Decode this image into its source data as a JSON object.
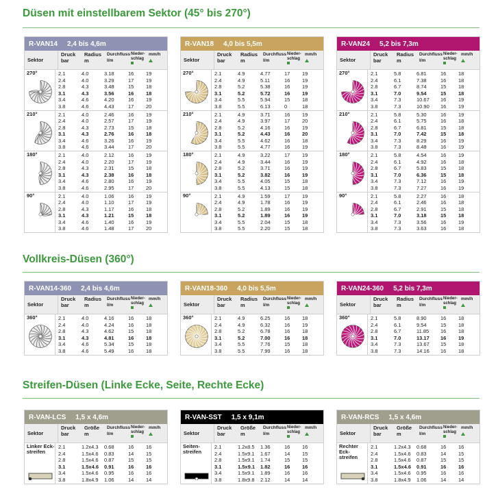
{
  "sections": {
    "s1": "Düsen mit einstellbarem Sektor (45° bis 270°)",
    "s2": "Vollkreis-Düsen (360°)",
    "s3": "Streifen-Düsen (Linke Ecke, Seite, Rechte Ecke)"
  },
  "headers": {
    "sektor": "Sektor",
    "druck": "Druck",
    "bar": "bar",
    "radius": "Radius",
    "m": "m",
    "groesse": "Größe",
    "durchfluss": "Durchfluss",
    "lm": "l/m",
    "nieder": "Nieder-",
    "schlag": "schlag",
    "mmh": "mm/h"
  },
  "colors": {
    "van14": "#8e93b3",
    "van18": "#c8a45e",
    "van24": "#b0166e",
    "lcs": "#a09e8c",
    "sst": "#000000",
    "rcs": "#a09e8c"
  },
  "cards": {
    "van14": {
      "model": "R-VAN14",
      "range": "2,4 bis 4,6m",
      "groups": [
        {
          "label": "270°",
          "rows": [
            [
              "2.1",
              "4.0",
              "3.18",
              "16",
              "19"
            ],
            [
              "2.4",
              "4.0",
              "3.29",
              "17",
              "19"
            ],
            [
              "2.8",
              "4.3",
              "3.48",
              "15",
              "18"
            ],
            [
              "3.1",
              "4.3",
              "3.56",
              "16",
              "18"
            ],
            [
              "3.4",
              "4.6",
              "4.20",
              "16",
              "19"
            ],
            [
              "3.8",
              "4.6",
              "4.43",
              "17",
              "20"
            ]
          ]
        },
        {
          "label": "210°",
          "rows": [
            [
              "2.1",
              "4.0",
              "2.46",
              "16",
              "19"
            ],
            [
              "2.4",
              "4.0",
              "2.57",
              "17",
              "19"
            ],
            [
              "2.8",
              "4.3",
              "2.73",
              "15",
              "18"
            ],
            [
              "3.1",
              "4.3",
              "2.76",
              "16",
              "18"
            ],
            [
              "3.4",
              "4.6",
              "3.26",
              "16",
              "19"
            ],
            [
              "3.8",
              "4.6",
              "3.44",
              "17",
              "20"
            ]
          ]
        },
        {
          "label": "180°",
          "rows": [
            [
              "2.1",
              "4.0",
              "2.12",
              "16",
              "19"
            ],
            [
              "2.4",
              "4.0",
              "2.20",
              "17",
              "19"
            ],
            [
              "2.8",
              "4.3",
              "2.31",
              "15",
              "18"
            ],
            [
              "3.1",
              "4.3",
              "2.38",
              "16",
              "18"
            ],
            [
              "3.4",
              "4.6",
              "2.80",
              "16",
              "19"
            ],
            [
              "3.8",
              "4.6",
              "2.95",
              "17",
              "20"
            ]
          ]
        },
        {
          "label": "90°",
          "rows": [
            [
              "2.1",
              "4.0",
              "1.06",
              "16",
              "19"
            ],
            [
              "2.4",
              "4.0",
              "1.10",
              "17",
              "19"
            ],
            [
              "2.8",
              "4.3",
              "1.17",
              "16",
              "18"
            ],
            [
              "3.1",
              "4.3",
              "1.21",
              "15",
              "18"
            ],
            [
              "3.4",
              "4.6",
              "1.40",
              "16",
              "19"
            ],
            [
              "3.8",
              "4.6",
              "1.48",
              "17",
              "20"
            ]
          ]
        }
      ]
    },
    "van18": {
      "model": "R-VAN18",
      "range": "4,0 bis 5,5m",
      "groups": [
        {
          "label": "270°",
          "rows": [
            [
              "2.1",
              "4.9",
              "4.77",
              "17",
              "19"
            ],
            [
              "2.4",
              "4.9",
              "5.11",
              "16",
              "19"
            ],
            [
              "2.8",
              "5.2",
              "5.38",
              "16",
              "19"
            ],
            [
              "3.1",
              "5.2",
              "5.72",
              "16",
              "19"
            ],
            [
              "3.4",
              "5.5",
              "5.94",
              "15",
              "18"
            ],
            [
              "3.8",
              "5.5",
              "6.13",
              "0",
              "18"
            ]
          ]
        },
        {
          "label": "210°",
          "rows": [
            [
              "2.1",
              "4.9",
              "3.71",
              "16",
              "19"
            ],
            [
              "2.4",
              "4.9",
              "3.97",
              "17",
              "20"
            ],
            [
              "2.8",
              "5.2",
              "4.16",
              "16",
              "19"
            ],
            [
              "3.1",
              "5.2",
              "4.43",
              "16",
              "20"
            ],
            [
              "3.4",
              "5.5",
              "4.62",
              "16",
              "18"
            ],
            [
              "3.8",
              "5.5",
              "4.77",
              "16",
              "19"
            ]
          ]
        },
        {
          "label": "180°",
          "rows": [
            [
              "2.1",
              "4.9",
              "3.22",
              "17",
              "19"
            ],
            [
              "2.4",
              "4.9",
              "3.44",
              "16",
              "19"
            ],
            [
              "2.8",
              "5.2",
              "3.71",
              "16",
              "19"
            ],
            [
              "3.1",
              "5.2",
              "3.82",
              "16",
              "19"
            ],
            [
              "3.4",
              "5.5",
              "4.05",
              "15",
              "18"
            ],
            [
              "3.8",
              "5.5",
              "4.13",
              "15",
              "18"
            ]
          ]
        },
        {
          "label": "90°",
          "rows": [
            [
              "2.1",
              "4.9",
              "1.59",
              "17",
              "19"
            ],
            [
              "2.4",
              "4.9",
              "1.78",
              "16",
              "19"
            ],
            [
              "2.8",
              "5.2",
              "1.89",
              "16",
              "19"
            ],
            [
              "3.1",
              "5.2",
              "1.89",
              "16",
              "19"
            ],
            [
              "3.4",
              "5.5",
              "2.04",
              "15",
              "18"
            ],
            [
              "3.8",
              "5.5",
              "2.20",
              "15",
              "18"
            ]
          ]
        }
      ]
    },
    "van24": {
      "model": "R-VAN24",
      "range": "5,2 bis 7,3m",
      "groups": [
        {
          "label": "270°",
          "rows": [
            [
              "2.1",
              "5.8",
              "6.81",
              "16",
              "18"
            ],
            [
              "2.4",
              "6.1",
              "7.38",
              "16",
              "18"
            ],
            [
              "2.8",
              "6.7",
              "8.74",
              "15",
              "18"
            ],
            [
              "3.1",
              "7.0",
              "9.54",
              "15",
              "18"
            ],
            [
              "3.4",
              "7.3",
              "10.67",
              "16",
              "19"
            ],
            [
              "3.8",
              "7.3",
              "10.90",
              "16",
              "19"
            ]
          ]
        },
        {
          "label": "210°",
          "rows": [
            [
              "2.1",
              "5.8",
              "5.30",
              "16",
              "19"
            ],
            [
              "2.4",
              "6.1",
              "5.75",
              "16",
              "18"
            ],
            [
              "2.8",
              "6.7",
              "6.81",
              "15",
              "18"
            ],
            [
              "3.1",
              "7.0",
              "7.42",
              "15",
              "18"
            ],
            [
              "3.4",
              "7.3",
              "8.29",
              "16",
              "19"
            ],
            [
              "3.8",
              "7.3",
              "8.48",
              "16",
              "19"
            ]
          ]
        },
        {
          "label": "180°",
          "rows": [
            [
              "2.1",
              "5.8",
              "4.54",
              "16",
              "19"
            ],
            [
              "2.4",
              "6.1",
              "4.92",
              "16",
              "18"
            ],
            [
              "2.8",
              "6.7",
              "5.83",
              "15",
              "18"
            ],
            [
              "3.1",
              "7.0",
              "6.36",
              "15",
              "18"
            ],
            [
              "3.4",
              "7.3",
              "7.12",
              "16",
              "19"
            ],
            [
              "3.8",
              "7.3",
              "7.27",
              "16",
              "19"
            ]
          ]
        },
        {
          "label": "90°",
          "rows": [
            [
              "2.1",
              "5.8",
              "2.27",
              "16",
              "18"
            ],
            [
              "2.4",
              "6.1",
              "2.46",
              "16",
              "18"
            ],
            [
              "2.8",
              "6.7",
              "2.91",
              "15",
              "18"
            ],
            [
              "3.1",
              "7.0",
              "3.18",
              "15",
              "18"
            ],
            [
              "3.4",
              "7.3",
              "3.56",
              "16",
              "19"
            ],
            [
              "3.8",
              "7.3",
              "3.63",
              "16",
              "18"
            ]
          ]
        }
      ]
    },
    "van14_360": {
      "model": "R-VAN14-360",
      "range": "2,4 bis 4,6m",
      "groups": [
        {
          "label": "360°",
          "rows": [
            [
              "2.1",
              "4.0",
              "4.16",
              "16",
              "18"
            ],
            [
              "2.4",
              "4.0",
              "4.24",
              "16",
              "18"
            ],
            [
              "2.8",
              "4.3",
              "4.62",
              "15",
              "18"
            ],
            [
              "3.1",
              "4.3",
              "4.81",
              "16",
              "18"
            ],
            [
              "3.4",
              "4.6",
              "5.34",
              "15",
              "18"
            ],
            [
              "3.8",
              "4.6",
              "5.49",
              "16",
              "18"
            ]
          ]
        }
      ]
    },
    "van18_360": {
      "model": "R-VAN18-360",
      "range": "4,0 bis 5,5m",
      "groups": [
        {
          "label": "360°",
          "rows": [
            [
              "2.1",
              "4.9",
              "6.25",
              "16",
              "18"
            ],
            [
              "2.4",
              "4.9",
              "6.32",
              "16",
              "19"
            ],
            [
              "2.8",
              "5.2",
              "6.78",
              "16",
              "18"
            ],
            [
              "3.1",
              "5.2",
              "7.00",
              "16",
              "18"
            ],
            [
              "3.4",
              "5.5",
              "7.76",
              "15",
              "18"
            ],
            [
              "3.8",
              "5.5",
              "7.99",
              "16",
              "18"
            ]
          ]
        }
      ]
    },
    "van24_360": {
      "model": "R-VAN24-360",
      "range": "5,2 bis 7,3m",
      "groups": [
        {
          "label": "360°",
          "rows": [
            [
              "2.1",
              "5.8",
              "8.90",
              "16",
              "18"
            ],
            [
              "2.4",
              "6.1",
              "9.54",
              "15",
              "18"
            ],
            [
              "2.8",
              "6.7",
              "11.85",
              "16",
              "18"
            ],
            [
              "3.1",
              "7.0",
              "13.17",
              "16",
              "19"
            ],
            [
              "3.4",
              "7.3",
              "13.67",
              "15",
              "18"
            ],
            [
              "3.8",
              "7.3",
              "14.16",
              "16",
              "18"
            ]
          ]
        }
      ]
    },
    "lcs": {
      "model": "R-VAN-LCS",
      "range": "1,5 x 4,6m",
      "groups": [
        {
          "label": "Linker Eck- streifen",
          "rows": [
            [
              "2.1",
              "1.2x4.3",
              "0.68",
              "16",
              "16"
            ],
            [
              "2.4",
              "1.5x4.6",
              "0.83",
              "14",
              "15"
            ],
            [
              "2.8",
              "1.5x4.6",
              "0.87",
              "15",
              "15"
            ],
            [
              "3.1",
              "1.5x4.6",
              "0.91",
              "16",
              "16"
            ],
            [
              "3.4",
              "1.5x4.6",
              "0.95",
              "16",
              "16"
            ],
            [
              "3.8",
              "1.8x4.9",
              "1.06",
              "14",
              "14"
            ]
          ]
        }
      ]
    },
    "sst": {
      "model": "R-VAN-SST",
      "range": "1,5 x 9,1m",
      "groups": [
        {
          "label": "Seiten- streifen",
          "rows": [
            [
              "2.1",
              "1.2x8.5",
              "1.36",
              "16",
              "16"
            ],
            [
              "2.4",
              "1.5x9.1",
              "1.67",
              "14",
              "15"
            ],
            [
              "2.8",
              "1.5x9.1",
              "1.74",
              "15",
              "15"
            ],
            [
              "3.1",
              "1.5x9.1",
              "1.82",
              "16",
              "16"
            ],
            [
              "3.4",
              "1.5x9.1",
              "1.89",
              "16",
              "16"
            ],
            [
              "3.8",
              "1.8x9.8",
              "2.12",
              "14",
              "14"
            ]
          ]
        }
      ]
    },
    "rcs": {
      "model": "R-VAN-RCS",
      "range": "1,5 x 4,6m",
      "groups": [
        {
          "label": "Rechter Eck- streifen",
          "rows": [
            [
              "2.1",
              "1.2x4.3",
              "0.68",
              "16",
              "16"
            ],
            [
              "2.4",
              "1.5x4.6",
              "0.83",
              "14",
              "15"
            ],
            [
              "2.8",
              "1.5x4.6",
              "0.87",
              "15",
              "15"
            ],
            [
              "3.1",
              "1.5x4.6",
              "0.91",
              "16",
              "16"
            ],
            [
              "3.4",
              "1.5x4.6",
              "0.95",
              "16",
              "16"
            ],
            [
              "3.8",
              "1.8x4.9",
              "1.06",
              "14",
              "14"
            ]
          ]
        }
      ]
    }
  }
}
